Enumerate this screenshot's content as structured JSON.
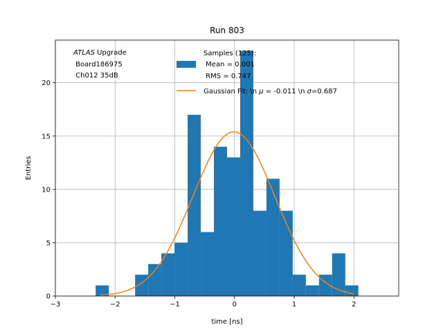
{
  "chart_data": {
    "type": "bar",
    "title": "Run 803",
    "xlabel": "time [ns]",
    "ylabel": "Entries",
    "xlim": [
      -3.0,
      2.75
    ],
    "ylim": [
      0,
      24
    ],
    "grid": true,
    "xticks": [
      -3,
      -2,
      -1,
      0,
      1,
      2
    ],
    "yticks": [
      0,
      5,
      10,
      15,
      20
    ],
    "bar_color": "#1f77b4",
    "fit_color": "#ff7f0e",
    "bins": [
      {
        "x0": -2.325,
        "x1": -2.105,
        "count": 1
      },
      {
        "x0": -2.105,
        "x1": -1.885,
        "count": 0
      },
      {
        "x0": -1.885,
        "x1": -1.665,
        "count": 0
      },
      {
        "x0": -1.665,
        "x1": -1.445,
        "count": 2
      },
      {
        "x0": -1.445,
        "x1": -1.225,
        "count": 3
      },
      {
        "x0": -1.225,
        "x1": -1.005,
        "count": 4
      },
      {
        "x0": -1.005,
        "x1": -0.785,
        "count": 5
      },
      {
        "x0": -0.785,
        "x1": -0.565,
        "count": 17
      },
      {
        "x0": -0.565,
        "x1": -0.345,
        "count": 6
      },
      {
        "x0": -0.345,
        "x1": -0.125,
        "count": 14
      },
      {
        "x0": -0.125,
        "x1": 0.095,
        "count": 13
      },
      {
        "x0": 0.095,
        "x1": 0.315,
        "count": 23
      },
      {
        "x0": 0.315,
        "x1": 0.535,
        "count": 8
      },
      {
        "x0": 0.535,
        "x1": 0.755,
        "count": 11
      },
      {
        "x0": 0.755,
        "x1": 0.975,
        "count": 8
      },
      {
        "x0": 0.975,
        "x1": 1.195,
        "count": 2
      },
      {
        "x0": 1.195,
        "x1": 1.415,
        "count": 1
      },
      {
        "x0": 1.415,
        "x1": 1.635,
        "count": 2
      },
      {
        "x0": 1.635,
        "x1": 1.855,
        "count": 4
      },
      {
        "x0": 1.855,
        "x1": 2.075,
        "count": 1
      }
    ],
    "fit": {
      "mu": -0.011,
      "sigma": 0.687,
      "amplitude": 15.4,
      "x_range": [
        -2.25,
        2.0
      ]
    },
    "annotation": {
      "line1_italic": "ATLAS",
      "line1_rest": " Upgrade",
      "line2": " Board186975",
      "line3": " Ch012 35dB"
    },
    "legend": {
      "placement": "top-right",
      "samples_line1": "Samples (125):",
      "samples_line2": " Mean = 0.001",
      "samples_line3": " RMS = 0.747",
      "fit_prefix": "Gaussian Fit: \\n ",
      "fit_mu_symbol": "μ",
      "fit_mid": " = -0.011 \\n ",
      "fit_sigma_symbol": "σ",
      "fit_suffix": "=0.687"
    }
  }
}
